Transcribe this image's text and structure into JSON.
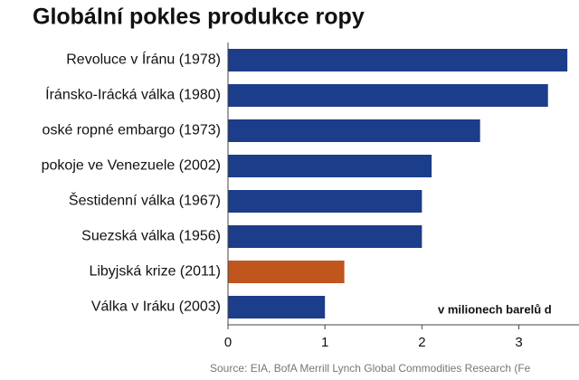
{
  "chart_data": {
    "type": "hbar",
    "title": "Globální pokles produkce ropy",
    "categories": [
      "Revoluce v Íránu (1978)",
      "Íránsko-Irácká válka (1980)",
      "oské ropné embargo (1973)",
      "pokoje ve Venezuele (2002)",
      "Šestidenní válka (1967)",
      "Suezská válka (1956)",
      "Libyjská krize (2011)",
      "Válka v Iráku (2003)"
    ],
    "values": [
      3.5,
      3.3,
      2.6,
      2.1,
      2.0,
      2.0,
      1.2,
      1.0
    ],
    "colors": [
      "#1b3d8a",
      "#1b3d8a",
      "#1b3d8a",
      "#1b3d8a",
      "#1b3d8a",
      "#1b3d8a",
      "#c0561d",
      "#1b3d8a"
    ],
    "xlim": [
      0,
      3.62
    ],
    "xticks": [
      0,
      1,
      2,
      3
    ],
    "annotation": "v milionech barelů d",
    "source": "Source: EIA, BofA Merrill Lynch Global Commodities Research (Fe"
  }
}
